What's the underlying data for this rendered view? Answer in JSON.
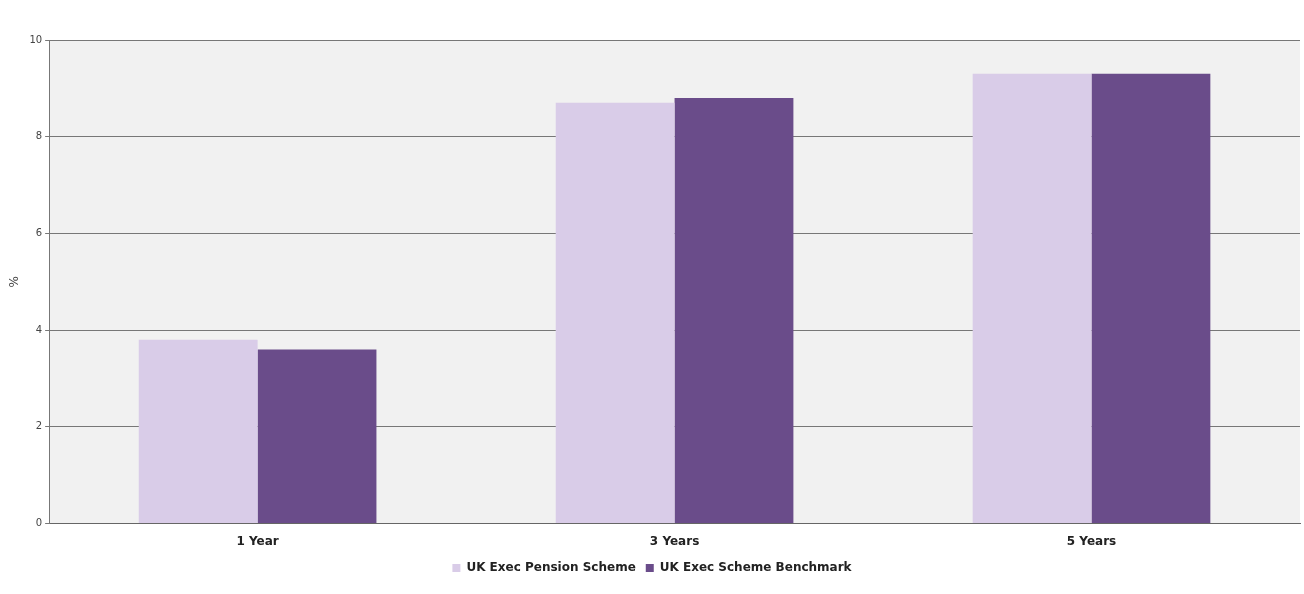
{
  "chart_data": {
    "type": "bar",
    "ylabel": "%",
    "categories": [
      "1 Year",
      "3 Years",
      "5 Years"
    ],
    "series": [
      {
        "name": "UK Exec Pension Scheme",
        "color": "#d9cce8",
        "values": [
          3.8,
          8.7,
          9.3
        ]
      },
      {
        "name": "UK Exec Scheme Benchmark",
        "color": "#6a4c8a",
        "values": [
          3.6,
          8.8,
          9.3
        ]
      }
    ],
    "ylim": [
      0,
      10
    ],
    "yticks": [
      0,
      2,
      4,
      6,
      8,
      10
    ],
    "grid": "y",
    "legend": "bottom"
  }
}
